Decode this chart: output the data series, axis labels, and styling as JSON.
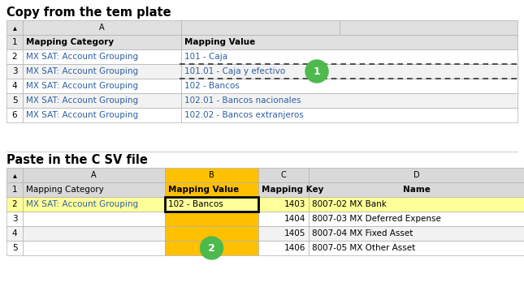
{
  "title1": "Copy from the tem plate",
  "title2": "Paste in the C SV file",
  "bg_color": "#ffffff",
  "title_fontsize": 10.5,
  "template_header_bg": "#e0e0e0",
  "template_row_bg_white": "#ffffff",
  "template_row_bg_gray": "#f2f2f2",
  "csv_header_bg": "#d9d9d9",
  "csv_B_col_bg": "#ffc000",
  "csv_row2_bg": "#ffff99",
  "csv_row_bg_white": "#ffffff",
  "csv_row_bg_gray": "#f2f2f2",
  "circle_color": "#4cba4c",
  "circle_text_color": "#ffffff",
  "border_color": "#b0b0b0",
  "dashed_color": "#333333",
  "cell_border_color": "#000000",
  "template_data": [
    [
      "1",
      "Mapping Category",
      "Mapping Value"
    ],
    [
      "2",
      "MX SAT: Account Grouping",
      "101 - Caja"
    ],
    [
      "3",
      "MX SAT: Account Grouping",
      "101.01 - Caja y efectivo"
    ],
    [
      "4",
      "MX SAT: Account Grouping",
      "102 - Bancos"
    ],
    [
      "5",
      "MX SAT: Account Grouping",
      "102.01 - Bancos nacionales"
    ],
    [
      "6",
      "MX SAT: Account Grouping",
      "102.02 - Bancos extranjeros"
    ]
  ],
  "csv_header_labels": [
    "▴",
    "A",
    "B",
    "C",
    "D"
  ],
  "csv_field_row": [
    "1",
    "Mapping Category",
    "Mapping Value",
    "Mapping Key",
    "Name"
  ],
  "csv_data_rows": [
    [
      "2",
      "MX SAT: Account Grouping",
      "102 - Bancos",
      "1403",
      "8007-02 MX Bank"
    ],
    [
      "3",
      "",
      "",
      "1404",
      "8007-03 MX Deferred Expense"
    ],
    [
      "4",
      "",
      "",
      "1405",
      "8007-04 MX Fixed Asset"
    ],
    [
      "5",
      "",
      "",
      "1406",
      "8007-05 MX Other Asset"
    ]
  ]
}
